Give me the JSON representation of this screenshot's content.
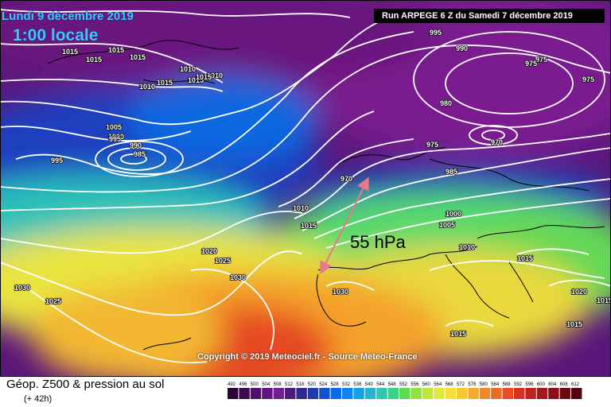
{
  "header": {
    "date": "Lundi 9 décembre 2019",
    "time": "1:00 locale",
    "run": "Run ARPEGE 6 Z du Samedi 7 décembre 2019"
  },
  "copyright": "Copyright © 2019 Meteociel.fr - Source Meteo-France",
  "annotation": {
    "text": "55 hPa",
    "arrow_color": "#e8788c"
  },
  "footer": {
    "title": "Géop. Z500 & pression au sol",
    "subtitle": "(+ 42h)"
  },
  "legend": {
    "values": [
      492,
      496,
      500,
      504,
      508,
      512,
      516,
      520,
      524,
      528,
      532,
      536,
      540,
      544,
      548,
      552,
      556,
      560,
      564,
      568,
      572,
      576,
      580,
      584,
      588,
      592,
      596,
      600,
      604,
      608,
      612
    ],
    "colors": [
      "#2a0436",
      "#3d0a52",
      "#4f0e6a",
      "#611582",
      "#731c96",
      "#4b1d7a",
      "#2a2a8f",
      "#1f3cb0",
      "#1252d2",
      "#0b6ae6",
      "#0a86f0",
      "#12a0e6",
      "#23b6d2",
      "#2fc7b0",
      "#3bd288",
      "#5bdc52",
      "#8ee43a",
      "#bde83a",
      "#e4e83e",
      "#f5df38",
      "#f8c630",
      "#f7a82b",
      "#f28826",
      "#ec6a24",
      "#e54e22",
      "#d83321",
      "#c2221f",
      "#a8161c",
      "#8c0f18",
      "#6e0a14",
      "#50060e"
    ]
  },
  "isobars": [
    "1015",
    "1015",
    "1015",
    "1015",
    "1015",
    "1015",
    "1010",
    "1010",
    "1015",
    "1010",
    "1005",
    "1000",
    "995",
    "990",
    "985",
    "995",
    "970",
    "975",
    "975",
    "970",
    "985",
    "980",
    "990",
    "995",
    "975",
    "975",
    "1010",
    "1015",
    "1000",
    "1005",
    "1010",
    "1015",
    "1020",
    "1025",
    "1030",
    "1030",
    "1030",
    "1025",
    "1020",
    "1015",
    "1015",
    "1015"
  ],
  "map": {
    "background_color": "#7a1f8f",
    "contour_color": "#ffffff",
    "coastline_color": "#000000"
  }
}
